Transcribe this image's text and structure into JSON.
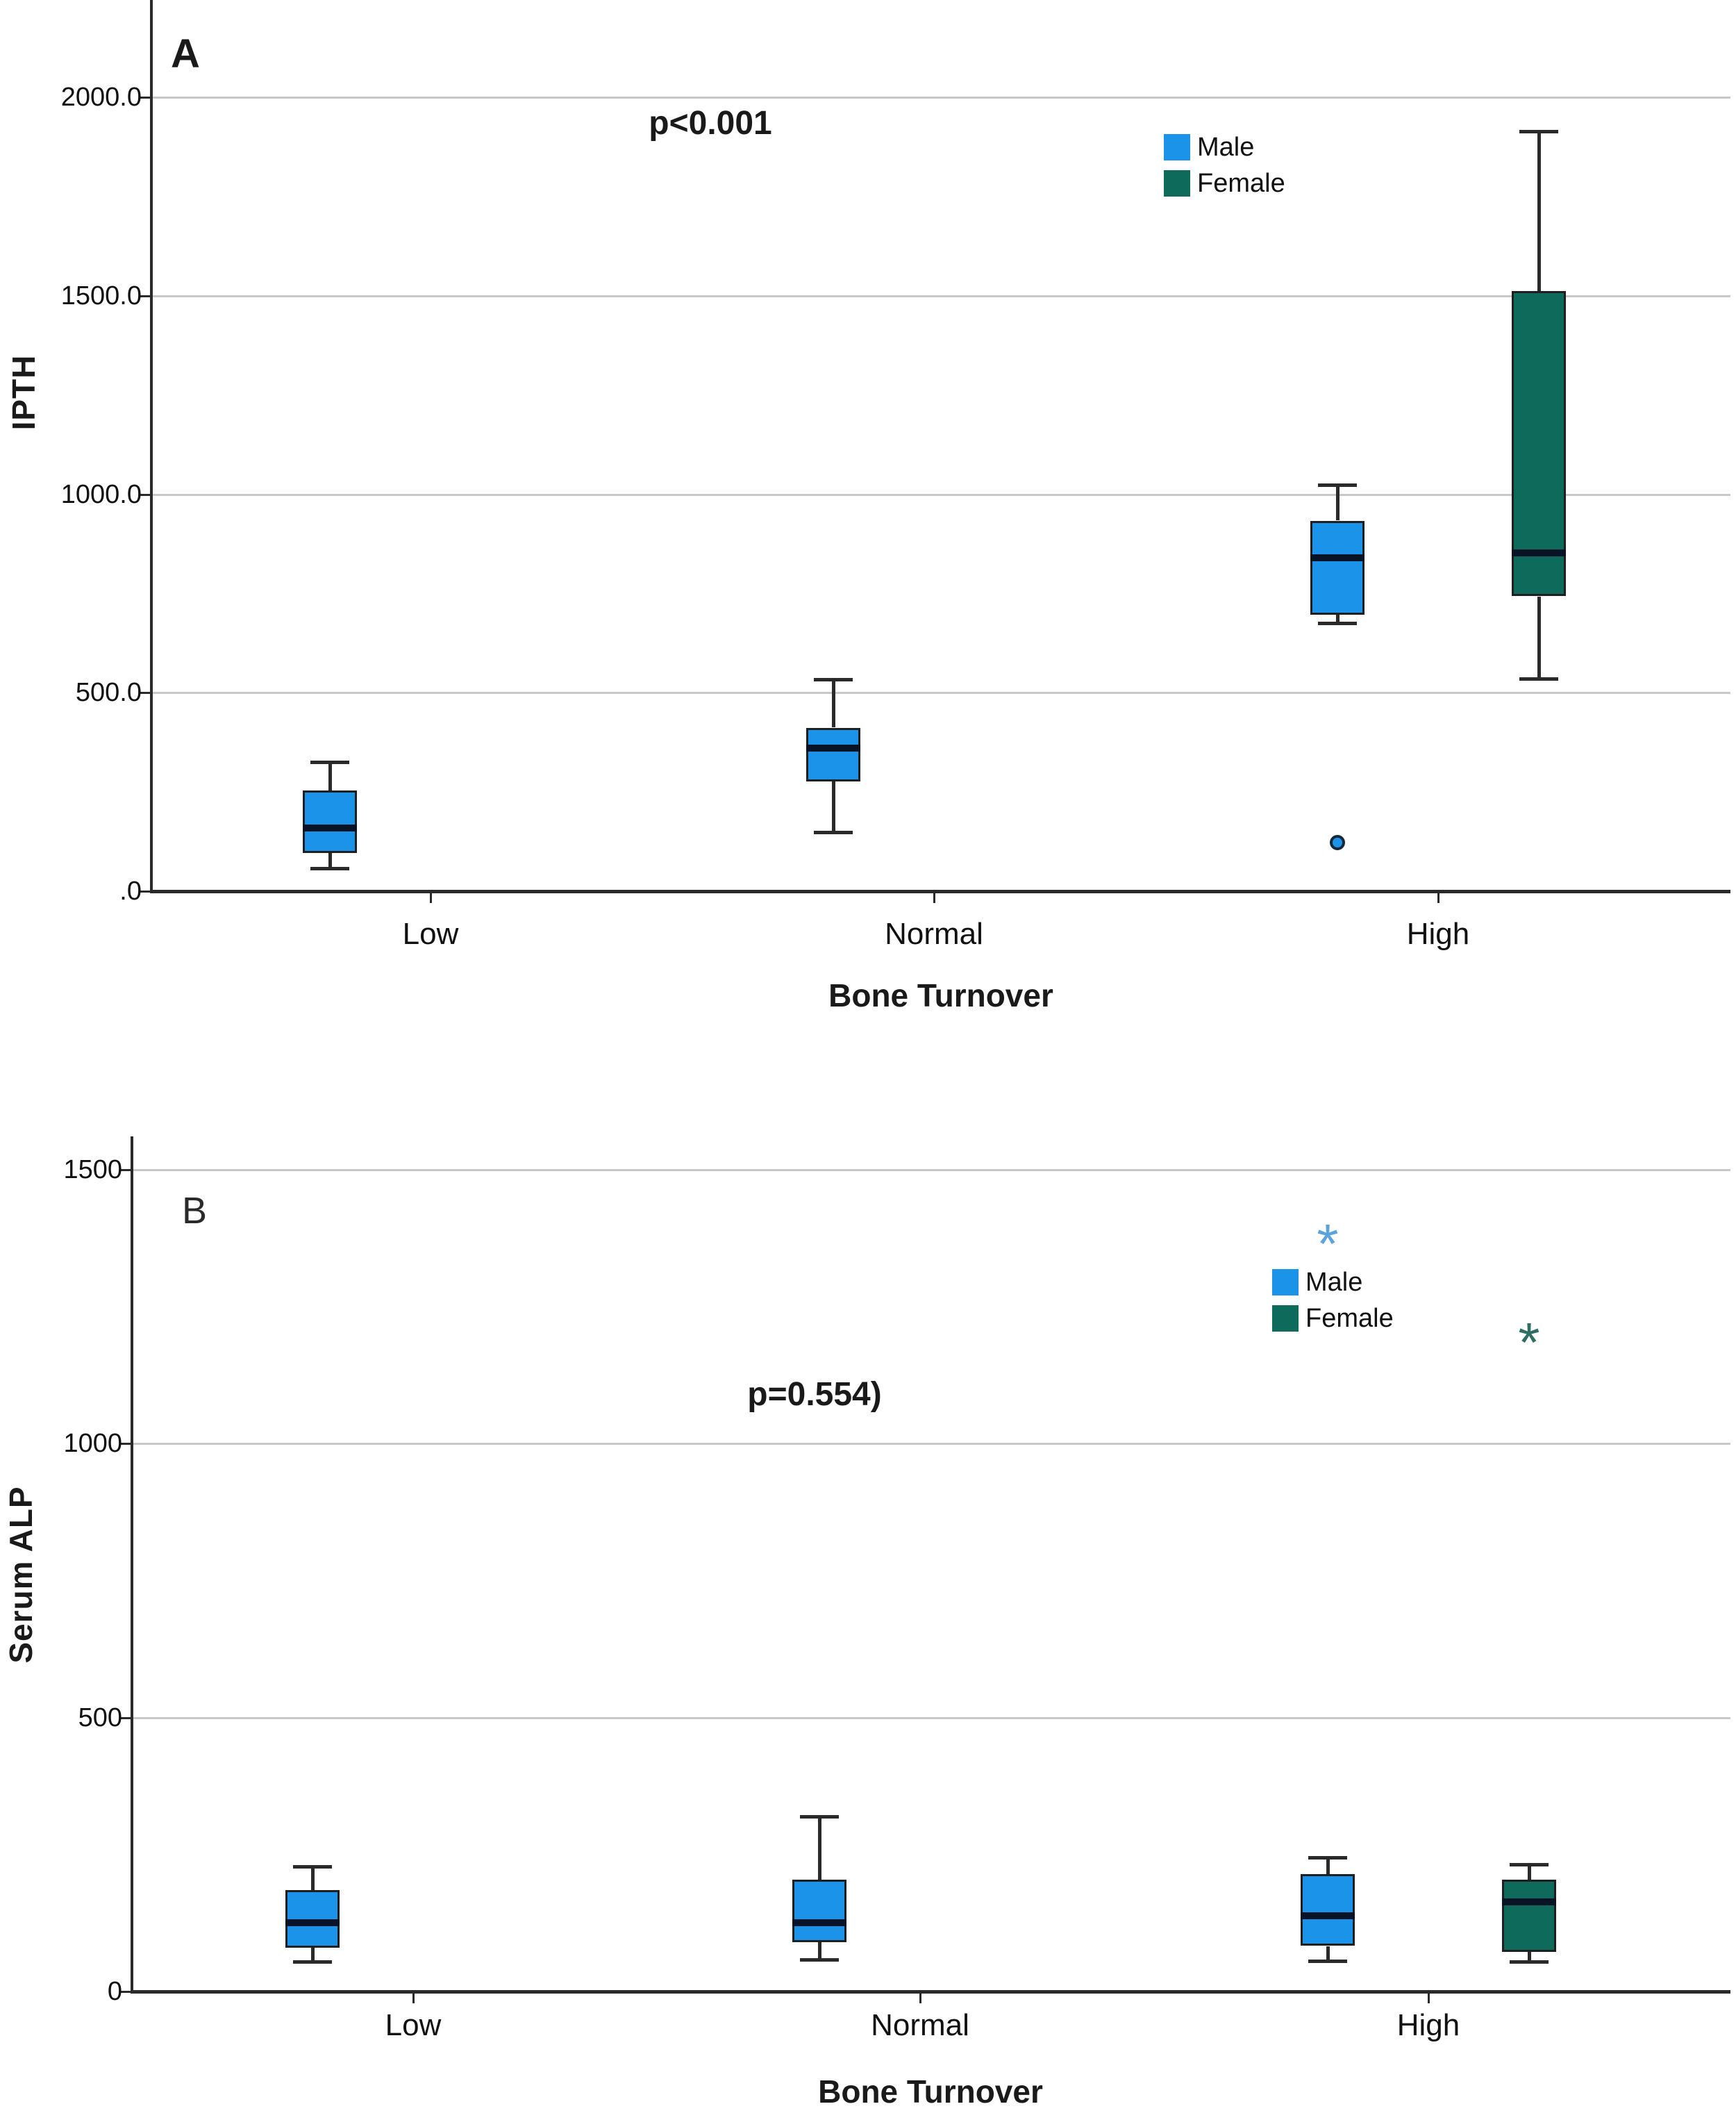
{
  "colors": {
    "male_fill": "#1b93e8",
    "female_fill": "#0e6a5b",
    "median_line": "#081425",
    "box_border": "#1f1f1f",
    "axis_line": "#2a2a2a",
    "gridline": "#c8c8c8",
    "male_star_outlier": "#5aa3dc",
    "female_star_outlier": "#2f6e63",
    "circle_outlier_border": "#15293a"
  },
  "chart_data": [
    {
      "type": "boxplot",
      "panel_label": "A",
      "ylabel": "IPTH",
      "xlabel": "Bone Turnover",
      "annotation": "p<0.001",
      "categories": [
        "Low",
        "Normal",
        "High"
      ],
      "ylim": [
        0,
        2100
      ],
      "grid": true,
      "legend_position": "top-right-inside",
      "yticks": [
        {
          "value": 0,
          "label": ".0"
        },
        {
          "value": 500,
          "label": "500.0"
        },
        {
          "value": 1000,
          "label": "1000.0"
        },
        {
          "value": 1500,
          "label": "1500.0"
        },
        {
          "value": 2000,
          "label": "2000.0"
        }
      ],
      "series": [
        {
          "name": "Male",
          "color": "#1b93e8",
          "boxes": [
            {
              "category": "Low",
              "whisker_low": 58,
              "q1": 97,
              "median": 160,
              "q3": 254,
              "whisker_high": 326,
              "outliers": []
            },
            {
              "category": "Normal",
              "whisker_low": 149,
              "q1": 277,
              "median": 360,
              "q3": 412,
              "whisker_high": 533,
              "outliers": []
            },
            {
              "category": "High",
              "whisker_low": 676,
              "q1": 696,
              "median": 840,
              "q3": 933,
              "whisker_high": 1023,
              "outliers": [
                {
                  "value": 122,
                  "marker": "circle"
                }
              ]
            }
          ]
        },
        {
          "name": "Female",
          "color": "#0e6a5b",
          "boxes": [
            {
              "category": "High",
              "whisker_low": 535,
              "q1": 742,
              "median": 853,
              "q3": 1511,
              "whisker_high": 1914,
              "outliers": []
            }
          ]
        }
      ]
    },
    {
      "type": "boxplot",
      "panel_label": "B",
      "ylabel": "Serum ALP",
      "xlabel": "Bone Turnover",
      "annotation": "p=0.554)",
      "categories": [
        "Low",
        "Normal",
        "High"
      ],
      "ylim": [
        0,
        1550
      ],
      "grid": true,
      "legend_position": "top-right-inside",
      "yticks": [
        {
          "value": 0,
          "label": "0"
        },
        {
          "value": 500,
          "label": "500"
        },
        {
          "value": 1000,
          "label": "1000"
        },
        {
          "value": 1500,
          "label": "1500"
        }
      ],
      "series": [
        {
          "name": "Male",
          "color": "#1b93e8",
          "boxes": [
            {
              "category": "Low",
              "whisker_low": 54,
              "q1": 80,
              "median": 125,
              "q3": 185,
              "whisker_high": 228,
              "outliers": []
            },
            {
              "category": "Normal",
              "whisker_low": 58,
              "q1": 90,
              "median": 125,
              "q3": 204,
              "whisker_high": 320,
              "outliers": []
            },
            {
              "category": "High",
              "whisker_low": 56,
              "q1": 83,
              "median": 138,
              "q3": 214,
              "whisker_high": 245,
              "outliers": [
                {
                  "value": 1380,
                  "marker": "asterisk",
                  "color": "#5aa3dc"
                }
              ]
            }
          ]
        },
        {
          "name": "Female",
          "color": "#0e6a5b",
          "boxes": [
            {
              "category": "High",
              "whisker_low": 54,
              "q1": 72,
              "median": 163,
              "q3": 204,
              "whisker_high": 232,
              "outliers": [
                {
                  "value": 1200,
                  "marker": "asterisk",
                  "color": "#2f6e63"
                }
              ]
            }
          ]
        }
      ]
    }
  ]
}
